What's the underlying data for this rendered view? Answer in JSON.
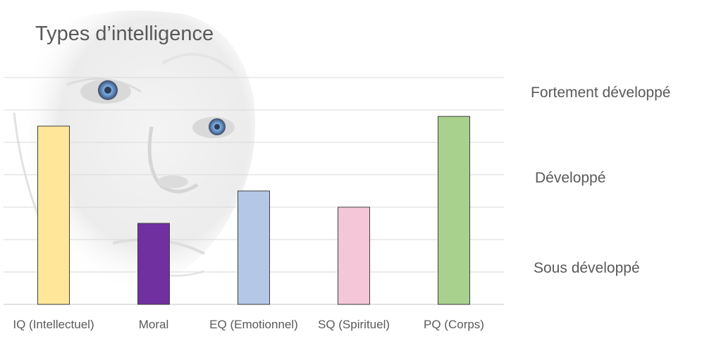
{
  "chart_data": {
    "type": "bar",
    "title": "Types d’intelligence",
    "categories": [
      "IQ (Intellectuel)",
      "Moral",
      "EQ (Emotionnel)",
      "SQ (Spirituel)",
      "PQ (Corps)"
    ],
    "values": [
      5.5,
      2.5,
      3.5,
      3,
      5.8
    ],
    "colors": [
      "#FFE699",
      "#7030A0",
      "#B4C7E7",
      "#F4C6D7",
      "#A9D18E"
    ],
    "ylim": [
      0,
      7
    ],
    "grid": true,
    "level_labels": [
      "Fortement développé",
      "Développé",
      "Sous développé"
    ]
  },
  "background": {
    "image": "robot-face"
  },
  "colors": {
    "text": "#595959",
    "gridline": "#D9D9D9",
    "bar_outline": "#404040"
  }
}
